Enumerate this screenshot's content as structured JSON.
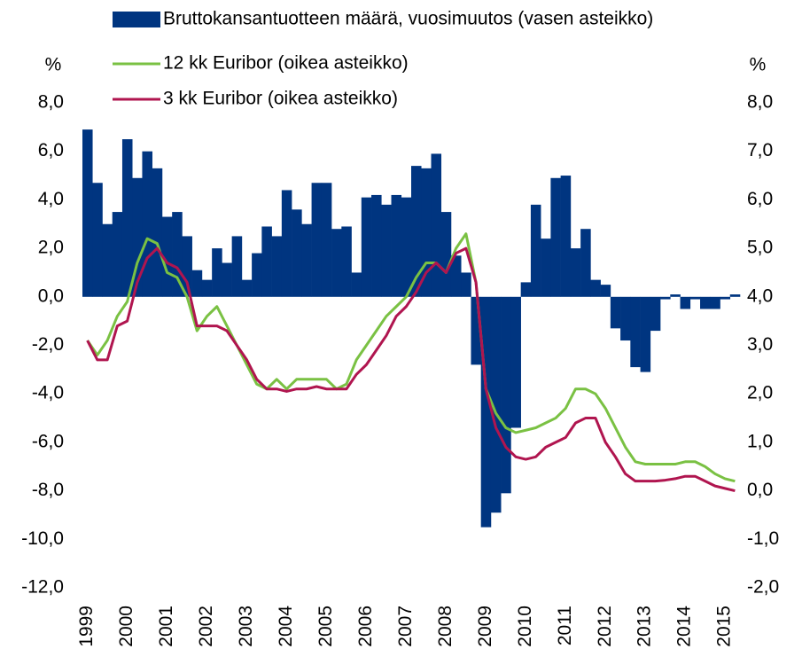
{
  "chart_data": {
    "type": "bar_line",
    "y_label": "%",
    "y2_label": "%",
    "categories": [
      "1999",
      null,
      null,
      null,
      "2000",
      null,
      null,
      null,
      "2001",
      null,
      null,
      null,
      "2002",
      null,
      null,
      null,
      "2003",
      null,
      null,
      null,
      "2004",
      null,
      null,
      null,
      "2005",
      null,
      null,
      null,
      "2006",
      null,
      null,
      null,
      "2007",
      null,
      null,
      null,
      "2008",
      null,
      null,
      null,
      "2009",
      null,
      null,
      null,
      "2010",
      null,
      null,
      null,
      "2011",
      null,
      null,
      null,
      "2012",
      null,
      null,
      null,
      "2013",
      null,
      null,
      null,
      "2014",
      null,
      null,
      null,
      "2015",
      null
    ],
    "series": [
      {
        "name": "Bruttokansantuotteen määrä, vuosimuutos (vasen asteikko)",
        "type": "bar",
        "color": "#003580",
        "axis": "y",
        "values": [
          6.9,
          4.7,
          3.0,
          3.5,
          6.5,
          4.9,
          6.0,
          5.3,
          3.3,
          3.5,
          2.5,
          1.1,
          0.7,
          2.0,
          1.4,
          2.5,
          0.7,
          1.8,
          2.9,
          2.5,
          4.4,
          3.6,
          3.0,
          4.7,
          4.7,
          2.8,
          2.9,
          1.0,
          4.1,
          4.2,
          3.8,
          4.2,
          4.1,
          5.4,
          5.3,
          5.9,
          3.5,
          1.7,
          1.0,
          -2.8,
          -9.5,
          -8.9,
          -8.1,
          -5.4,
          0.6,
          3.8,
          2.4,
          4.9,
          5.0,
          2.0,
          2.8,
          0.7,
          0.5,
          -1.3,
          -1.8,
          -2.9,
          -3.1,
          -1.4,
          -0.1,
          0.1,
          -0.5,
          -0.1,
          -0.5,
          -0.5,
          -0.1,
          0.1
        ]
      },
      {
        "name": "12 kk Euribor (oikea asteikko)",
        "type": "line",
        "color": "#7ac143",
        "axis": "y2",
        "values": [
          3.1,
          2.8,
          3.1,
          3.6,
          3.9,
          4.7,
          5.2,
          5.1,
          4.5,
          4.4,
          4.0,
          3.3,
          3.6,
          3.8,
          3.4,
          3.0,
          2.6,
          2.2,
          2.1,
          2.3,
          2.1,
          2.3,
          2.3,
          2.3,
          2.3,
          2.1,
          2.2,
          2.7,
          3.0,
          3.3,
          3.6,
          3.8,
          4.0,
          4.4,
          4.7,
          4.7,
          4.5,
          5.0,
          5.3,
          4.3,
          2.1,
          1.6,
          1.3,
          1.2,
          1.25,
          1.3,
          1.4,
          1.5,
          1.7,
          2.1,
          2.1,
          2.0,
          1.7,
          1.3,
          0.9,
          0.6,
          0.55,
          0.55,
          0.55,
          0.55,
          0.6,
          0.6,
          0.5,
          0.35,
          0.25,
          0.2
        ]
      },
      {
        "name": "3 kk Euribor (oikea asteikko)",
        "type": "line",
        "color": "#b0154f",
        "axis": "y2",
        "values": [
          3.1,
          2.7,
          2.7,
          3.4,
          3.5,
          4.3,
          4.8,
          5.0,
          4.7,
          4.6,
          4.3,
          3.4,
          3.4,
          3.4,
          3.3,
          3.0,
          2.7,
          2.3,
          2.1,
          2.1,
          2.05,
          2.1,
          2.1,
          2.15,
          2.1,
          2.1,
          2.1,
          2.4,
          2.6,
          2.9,
          3.2,
          3.6,
          3.8,
          4.1,
          4.5,
          4.7,
          4.5,
          4.9,
          5.0,
          4.3,
          2.1,
          1.3,
          0.9,
          0.7,
          0.65,
          0.7,
          0.9,
          1.0,
          1.1,
          1.4,
          1.5,
          1.5,
          1.0,
          0.7,
          0.35,
          0.2,
          0.2,
          0.2,
          0.22,
          0.25,
          0.3,
          0.3,
          0.2,
          0.1,
          0.05,
          0.0
        ]
      }
    ],
    "ylim": [
      -12,
      8
    ],
    "yticks": [
      {
        "value": 8,
        "label": "8,0"
      },
      {
        "value": 6,
        "label": "6,0"
      },
      {
        "value": 4,
        "label": "4,0"
      },
      {
        "value": 2,
        "label": "2,0"
      },
      {
        "value": 0,
        "label": "0,0"
      },
      {
        "value": -2,
        "label": "-2,0"
      },
      {
        "value": -4,
        "label": "-4,0"
      },
      {
        "value": -6,
        "label": "-6,0"
      },
      {
        "value": -8,
        "label": "-8,0"
      },
      {
        "value": -10,
        "label": "-10,0"
      },
      {
        "value": -12,
        "label": "-12,0"
      }
    ],
    "y2lim": [
      -2,
      8
    ],
    "y2ticks": [
      {
        "value": 8,
        "label": "8,0"
      },
      {
        "value": 7,
        "label": "7,0"
      },
      {
        "value": 6,
        "label": "6,0"
      },
      {
        "value": 5,
        "label": "5,0"
      },
      {
        "value": 4,
        "label": "4,0"
      },
      {
        "value": 3,
        "label": "3,0"
      },
      {
        "value": 2,
        "label": "2,0"
      },
      {
        "value": 1,
        "label": "1,0"
      },
      {
        "value": 0,
        "label": "0,0"
      },
      {
        "value": -1,
        "label": "-1,0"
      },
      {
        "value": -2,
        "label": "-2,0"
      }
    ],
    "grid": false
  }
}
